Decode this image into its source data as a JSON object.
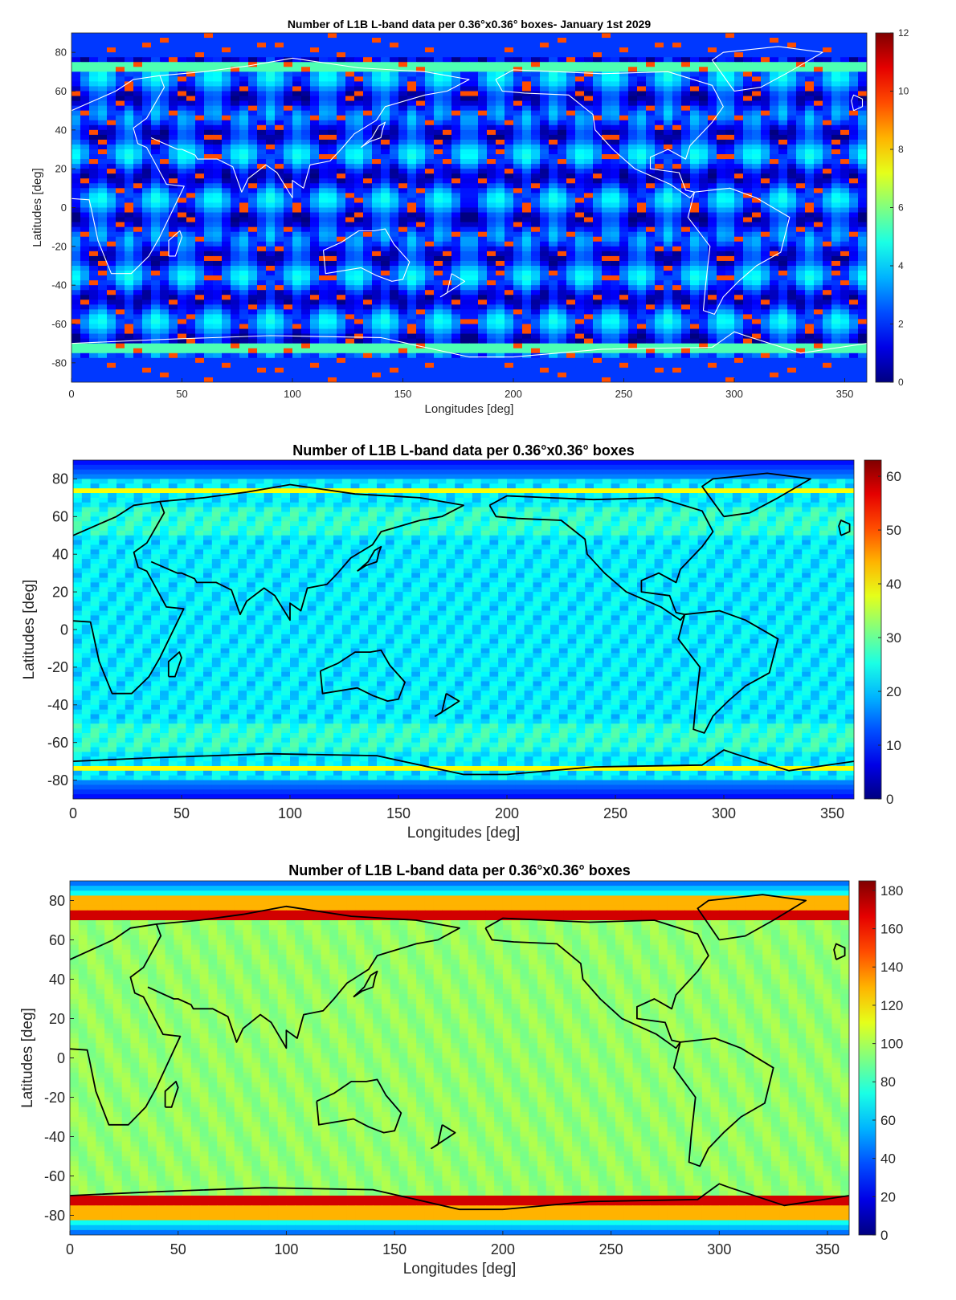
{
  "chart_data": [
    {
      "type": "heatmap",
      "title": "Number of L1B L-band data per 0.36°x0.36° boxes- January 1st 2029",
      "xlabel": "Longitudes [deg]",
      "ylabel": "Latitudes [deg]",
      "xlim": [
        0,
        360
      ],
      "ylim": [
        -90,
        90
      ],
      "xticks": [
        "0",
        "50",
        "100",
        "150",
        "200",
        "250",
        "300",
        "350"
      ],
      "yticks": [
        "80",
        "60",
        "40",
        "20",
        "0",
        "-20",
        "-40",
        "-60",
        "-80"
      ],
      "colorbar_ticks": [
        "12",
        "10",
        "8",
        "6",
        "4",
        "2",
        "0"
      ],
      "clim": [
        0,
        12
      ],
      "colormap": "jet",
      "coastline_color": "#ffffff",
      "pattern": "overlapping orbit swath diamonds"
    },
    {
      "type": "heatmap",
      "title": "Number of L1B L-band data per 0.36°x0.36° boxes",
      "xlabel": "Longitudes [deg]",
      "ylabel": "Latitudes [deg]",
      "xlim": [
        0,
        360
      ],
      "ylim": [
        -90,
        90
      ],
      "xticks": [
        "0",
        "50",
        "100",
        "150",
        "200",
        "250",
        "300",
        "350"
      ],
      "yticks": [
        "80",
        "60",
        "40",
        "20",
        "0",
        "-20",
        "-40",
        "-60",
        "-80"
      ],
      "colorbar_ticks": [
        "60",
        "50",
        "40",
        "30",
        "20",
        "10",
        "0"
      ],
      "clim": [
        0,
        63
      ],
      "colormap": "jet",
      "coastline_color": "#000000",
      "pattern": "dense swath mesh"
    },
    {
      "type": "heatmap",
      "title": "Number of L1B L-band data per 0.36°x0.36° boxes",
      "xlabel": "Longitudes [deg]",
      "ylabel": "Latitudes [deg]",
      "xlim": [
        0,
        360
      ],
      "ylim": [
        -90,
        90
      ],
      "xticks": [
        "0",
        "50",
        "100",
        "150",
        "200",
        "250",
        "300",
        "350"
      ],
      "yticks": [
        "80",
        "60",
        "40",
        "20",
        "0",
        "-20",
        "-40",
        "-60",
        "-80"
      ],
      "colorbar_ticks": [
        "180",
        "160",
        "140",
        "120",
        "100",
        "80",
        "60",
        "40",
        "20",
        "0"
      ],
      "clim": [
        0,
        185
      ],
      "colormap": "jet",
      "coastline_color": "#000000",
      "pattern": "near uniform coverage"
    }
  ]
}
